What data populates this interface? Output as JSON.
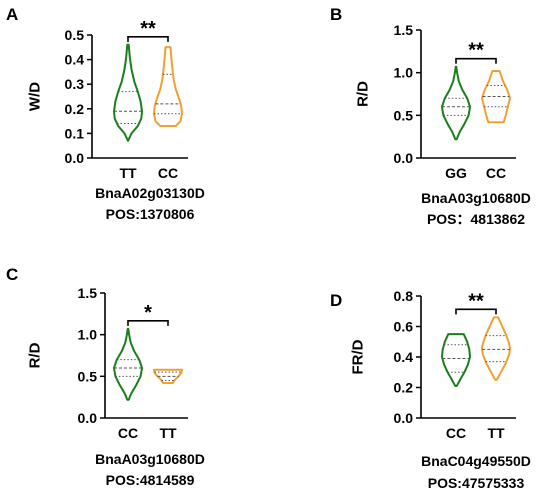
{
  "chart_data": [
    {
      "panel": "A",
      "type": "violin",
      "ylabel": "W/D",
      "ylim": [
        0,
        0.5
      ],
      "yticks": [
        "0.0",
        "0.1",
        "0.2",
        "0.3",
        "0.4",
        "0.5"
      ],
      "categories": [
        "TT",
        "CC"
      ],
      "significance": "**",
      "caption": [
        "BnaA02g03130D",
        "POS:1370806"
      ],
      "series": [
        {
          "color": "#1a7f1a",
          "min": 0.07,
          "max": 0.46,
          "q1": 0.14,
          "median": 0.19,
          "q3": 0.27,
          "profile": [
            [
              0.07,
              0.0
            ],
            [
              0.1,
              0.25
            ],
            [
              0.13,
              0.7
            ],
            [
              0.16,
              0.95
            ],
            [
              0.19,
              1.0
            ],
            [
              0.23,
              0.9
            ],
            [
              0.27,
              0.7
            ],
            [
              0.31,
              0.45
            ],
            [
              0.36,
              0.25
            ],
            [
              0.41,
              0.13
            ],
            [
              0.46,
              0.05
            ]
          ]
        },
        {
          "color": "#f0a030",
          "min": 0.13,
          "max": 0.45,
          "q1": 0.18,
          "median": 0.22,
          "q3": 0.34,
          "profile": [
            [
              0.13,
              0.55
            ],
            [
              0.15,
              0.9
            ],
            [
              0.18,
              1.0
            ],
            [
              0.21,
              0.95
            ],
            [
              0.24,
              0.8
            ],
            [
              0.28,
              0.55
            ],
            [
              0.32,
              0.4
            ],
            [
              0.36,
              0.32
            ],
            [
              0.4,
              0.25
            ],
            [
              0.45,
              0.18
            ]
          ]
        }
      ]
    },
    {
      "panel": "B",
      "type": "violin",
      "ylabel": "R/D",
      "ylim": [
        0,
        1.5
      ],
      "yticks": [
        "0.0",
        "0.5",
        "1.0",
        "1.5"
      ],
      "categories": [
        "GG",
        "CC"
      ],
      "significance": "**",
      "caption": [
        "BnaA03g10680D",
        "POS：4813862"
      ],
      "series": [
        {
          "color": "#1a7f1a",
          "min": 0.22,
          "max": 1.07,
          "q1": 0.5,
          "median": 0.6,
          "q3": 0.7,
          "profile": [
            [
              0.22,
              0.05
            ],
            [
              0.3,
              0.25
            ],
            [
              0.4,
              0.6
            ],
            [
              0.5,
              0.9
            ],
            [
              0.6,
              1.0
            ],
            [
              0.7,
              0.8
            ],
            [
              0.8,
              0.45
            ],
            [
              0.9,
              0.2
            ],
            [
              1.0,
              0.08
            ],
            [
              1.07,
              0.02
            ]
          ]
        },
        {
          "color": "#f0a030",
          "min": 0.42,
          "max": 1.02,
          "q1": 0.6,
          "median": 0.72,
          "q3": 0.85,
          "profile": [
            [
              0.42,
              0.55
            ],
            [
              0.5,
              0.7
            ],
            [
              0.6,
              0.85
            ],
            [
              0.7,
              1.0
            ],
            [
              0.8,
              0.8
            ],
            [
              0.9,
              0.5
            ],
            [
              1.0,
              0.3
            ],
            [
              1.02,
              0.25
            ]
          ]
        }
      ]
    },
    {
      "panel": "C",
      "type": "violin",
      "ylabel": "R/D",
      "ylim": [
        0,
        1.5
      ],
      "yticks": [
        "0.0",
        "0.5",
        "1.0",
        "1.5"
      ],
      "categories": [
        "CC",
        "TT"
      ],
      "significance": "*",
      "caption": [
        "BnaA03g10680D",
        "POS:4814589"
      ],
      "series": [
        {
          "color": "#1a7f1a",
          "min": 0.22,
          "max": 1.07,
          "q1": 0.5,
          "median": 0.6,
          "q3": 0.7,
          "profile": [
            [
              0.22,
              0.05
            ],
            [
              0.3,
              0.25
            ],
            [
              0.4,
              0.6
            ],
            [
              0.5,
              0.9
            ],
            [
              0.6,
              1.0
            ],
            [
              0.7,
              0.8
            ],
            [
              0.8,
              0.45
            ],
            [
              0.9,
              0.2
            ],
            [
              1.0,
              0.08
            ],
            [
              1.07,
              0.02
            ]
          ]
        },
        {
          "color": "#f0a030",
          "min": 0.42,
          "max": 0.58,
          "q1": 0.45,
          "median": 0.5,
          "q3": 0.55,
          "profile": [
            [
              0.42,
              0.35
            ],
            [
              0.46,
              0.5
            ],
            [
              0.5,
              0.75
            ],
            [
              0.54,
              0.95
            ],
            [
              0.58,
              1.0
            ]
          ]
        }
      ]
    },
    {
      "panel": "D",
      "type": "violin",
      "ylabel": "FR/D",
      "ylim": [
        0,
        0.8
      ],
      "yticks": [
        "0.0",
        "0.2",
        "0.4",
        "0.6",
        "0.8"
      ],
      "categories": [
        "CC",
        "TT"
      ],
      "significance": "**",
      "caption": [
        "BnaC04g49550D",
        "POS:47575333"
      ],
      "series": [
        {
          "color": "#1a7f1a",
          "min": 0.21,
          "max": 0.55,
          "q1": 0.3,
          "median": 0.39,
          "q3": 0.48,
          "profile": [
            [
              0.21,
              0.05
            ],
            [
              0.26,
              0.35
            ],
            [
              0.3,
              0.6
            ],
            [
              0.35,
              0.85
            ],
            [
              0.4,
              1.0
            ],
            [
              0.45,
              0.95
            ],
            [
              0.5,
              0.8
            ],
            [
              0.55,
              0.55
            ]
          ]
        },
        {
          "color": "#f0a030",
          "min": 0.25,
          "max": 0.66,
          "q1": 0.37,
          "median": 0.45,
          "q3": 0.54,
          "profile": [
            [
              0.25,
              0.05
            ],
            [
              0.3,
              0.35
            ],
            [
              0.36,
              0.7
            ],
            [
              0.42,
              0.95
            ],
            [
              0.46,
              1.0
            ],
            [
              0.5,
              0.9
            ],
            [
              0.55,
              0.7
            ],
            [
              0.6,
              0.45
            ],
            [
              0.66,
              0.15
            ]
          ]
        }
      ]
    }
  ]
}
